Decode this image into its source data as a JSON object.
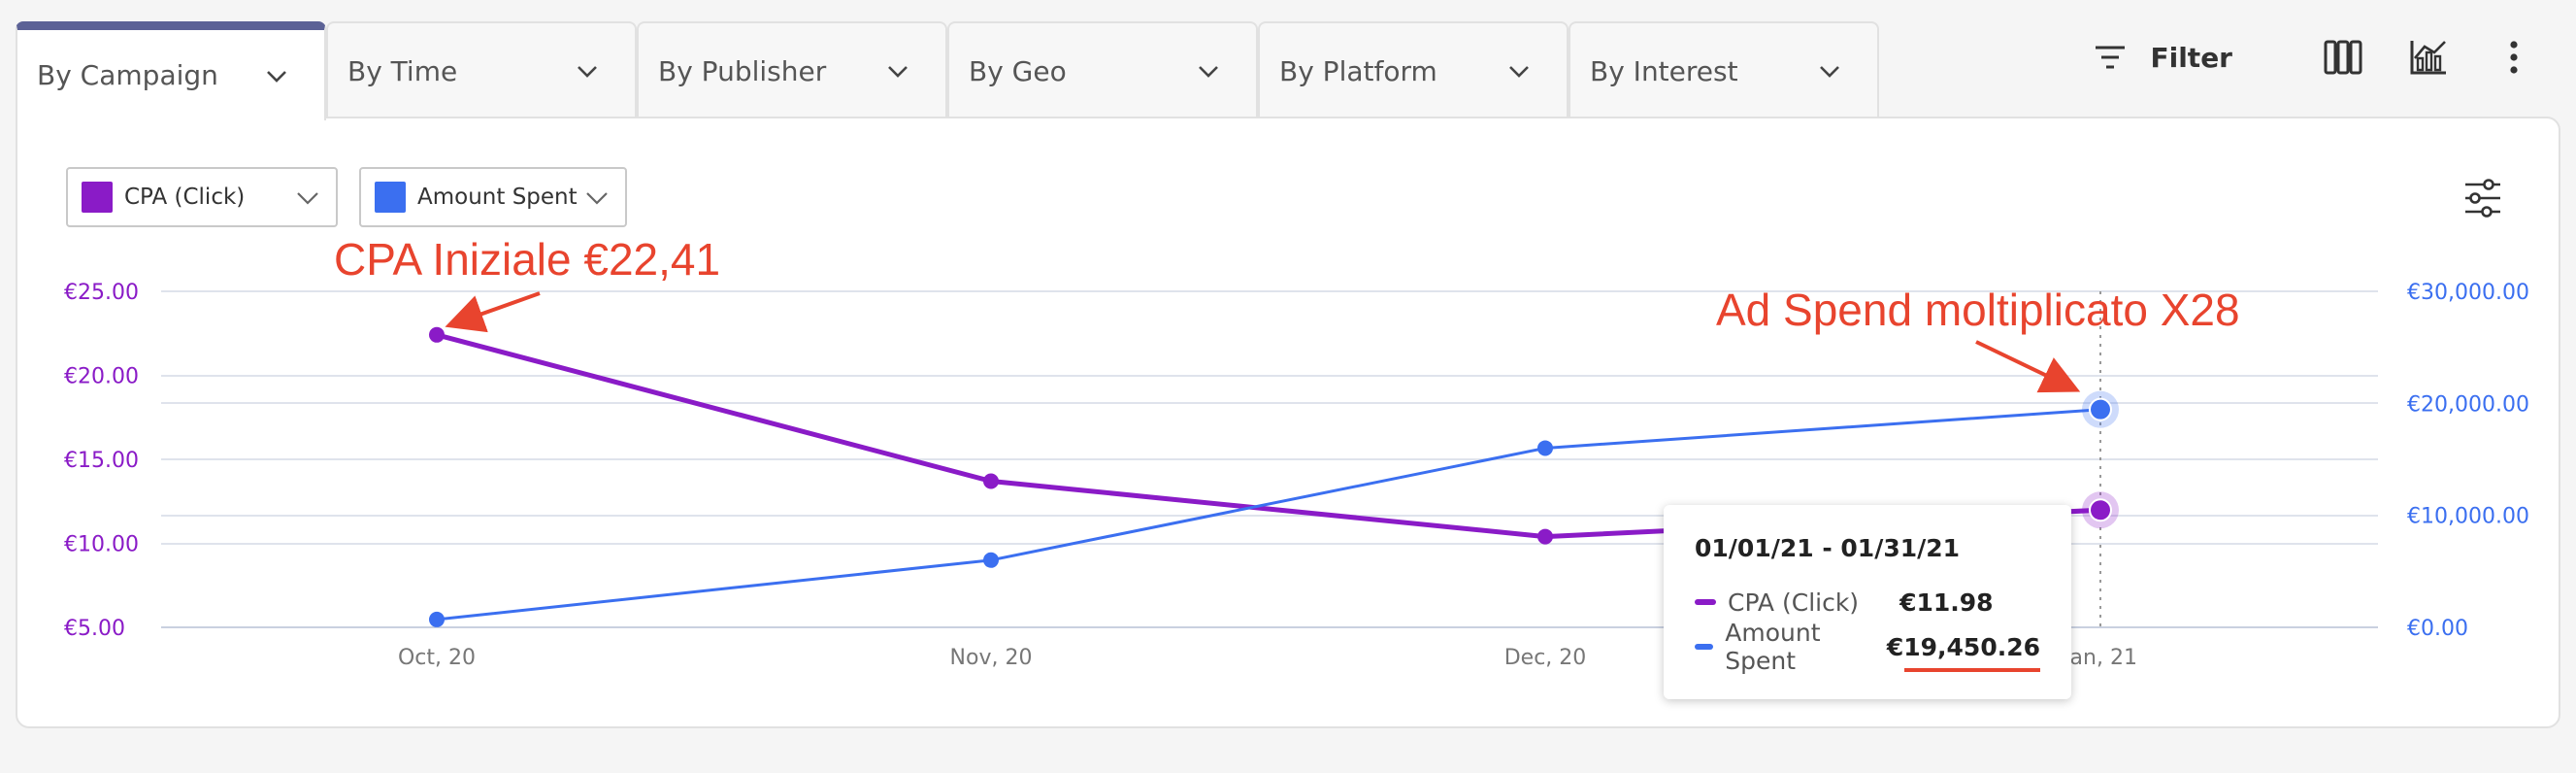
{
  "tabs": [
    {
      "label": "By Campaign",
      "active": true
    },
    {
      "label": "By Time",
      "active": false
    },
    {
      "label": "By Publisher",
      "active": false
    },
    {
      "label": "By Geo",
      "active": false
    },
    {
      "label": "By Platform",
      "active": false
    },
    {
      "label": "By Interest",
      "active": false
    }
  ],
  "toolbar": {
    "filter_label": "Filter",
    "icons": [
      "filter-icon",
      "columns-icon",
      "chart-toggle-icon",
      "more-vertical-icon"
    ]
  },
  "selectors": [
    {
      "label": "CPA (Click)",
      "color": "#8a1bc7"
    },
    {
      "label": "Amount Spent",
      "color": "#3b6ff0"
    }
  ],
  "colors": {
    "cpa": "#8a1bc7",
    "spent": "#3b6ff0",
    "annotation": "#e8442e",
    "grid": "#dfe3ec"
  },
  "annotations": {
    "left": "CPA Iniziale €22,41",
    "right": "Ad Spend moltiplicato X28"
  },
  "tooltip": {
    "title": "01/01/21 - 01/31/21",
    "rows": [
      {
        "name": "CPA (Click)",
        "value": "€11.98"
      },
      {
        "name": "Amount Spent",
        "value": "€19,450.26"
      }
    ]
  },
  "chart_data": {
    "type": "line",
    "categories": [
      "Oct, 20",
      "Nov, 20",
      "Dec, 20",
      "Jan, 21"
    ],
    "series": [
      {
        "name": "CPA (Click)",
        "axis": "left",
        "values": [
          22.41,
          13.7,
          10.4,
          11.98
        ]
      },
      {
        "name": "Amount Spent",
        "axis": "right",
        "values": [
          700,
          6000,
          16000,
          19450.26
        ]
      }
    ],
    "y_left": {
      "min": 5,
      "max": 25,
      "ticks": [
        "€5.00",
        "€10.00",
        "€15.00",
        "€20.00",
        "€25.00"
      ]
    },
    "y_right": {
      "min": 0,
      "max": 30000,
      "ticks": [
        "€0.00",
        "€10,000.00",
        "€20,000.00",
        "€30,000.00"
      ]
    },
    "highlight_index": 3,
    "grid": true
  }
}
